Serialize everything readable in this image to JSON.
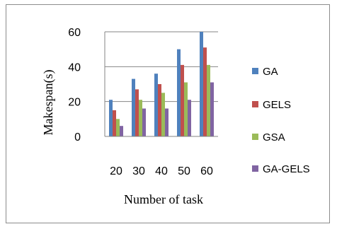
{
  "chart_data": {
    "type": "bar",
    "title": "",
    "xlabel": "Number of task",
    "ylabel": "Makespan(s)",
    "categories": [
      "20",
      "30",
      "40",
      "50",
      "60"
    ],
    "ylim": [
      0,
      60
    ],
    "yticks": [
      "0",
      "20",
      "40",
      "60"
    ],
    "grid": "horizontal",
    "legend_position": "right",
    "series": [
      {
        "name": "GA",
        "color": "#4F81BD",
        "values": [
          21,
          33,
          36,
          50,
          60
        ]
      },
      {
        "name": "GELS",
        "color": "#C0504D",
        "values": [
          15,
          27,
          30,
          41,
          51
        ]
      },
      {
        "name": "GSA",
        "color": "#9BBB59",
        "values": [
          10,
          21,
          25,
          31,
          41
        ]
      },
      {
        "name": "GA-GELS",
        "color": "#8064A2",
        "values": [
          6,
          16,
          16,
          21,
          31
        ]
      }
    ]
  }
}
